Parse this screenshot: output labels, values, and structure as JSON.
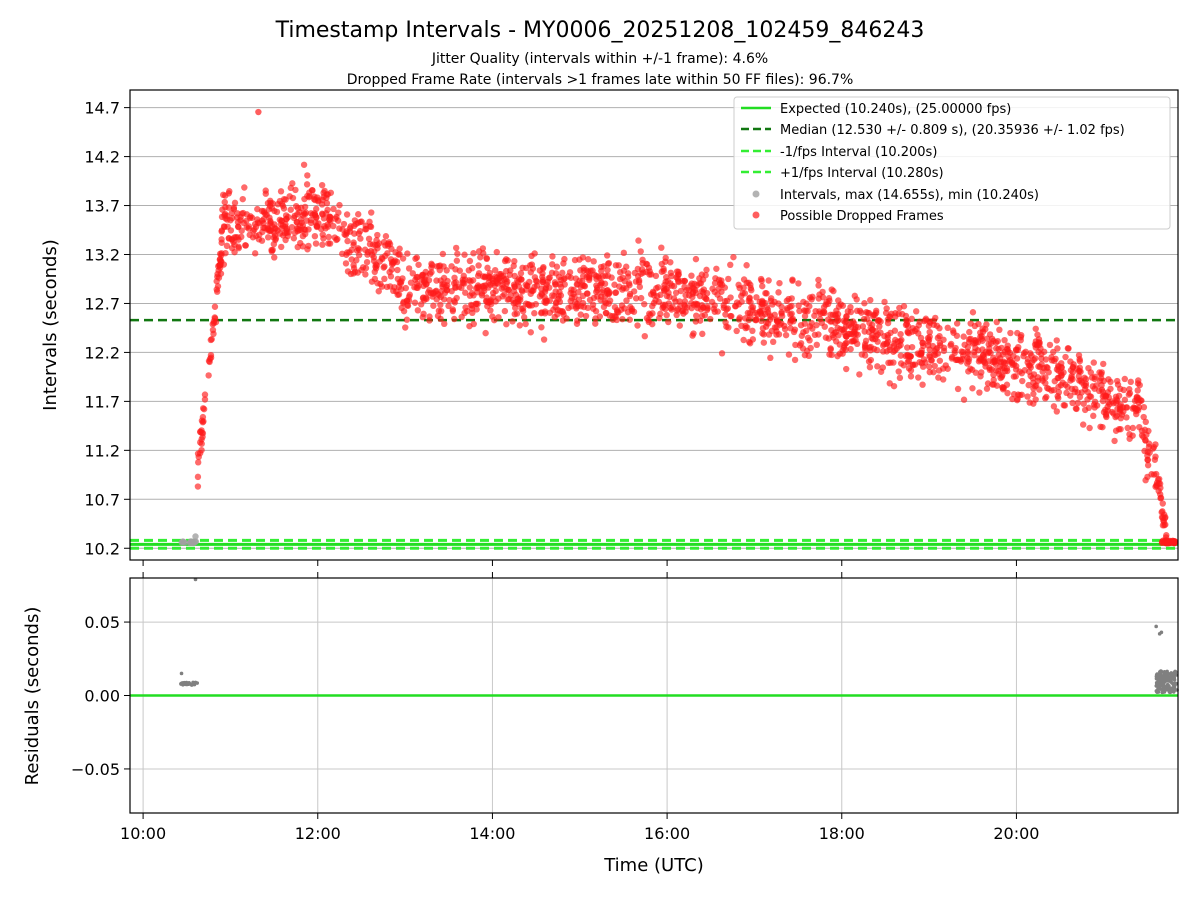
{
  "chart_data": [
    {
      "type": "scatter",
      "title": "Timestamp Intervals - MY0006_20251208_102459_846243",
      "subtitles": [
        "Jitter Quality (intervals within +/-1 frame): 4.6%",
        "Dropped Frame Rate (intervals >1 frames late within 50 FF files): 96.7%"
      ],
      "xlabel": "",
      "ylabel": "Intervals (seconds)",
      "xlim": [
        9.85,
        21.85
      ],
      "ylim": [
        10.08,
        14.88
      ],
      "y_ticks": [
        "10.2",
        "10.7",
        "11.2",
        "11.7",
        "12.2",
        "12.7",
        "13.2",
        "13.7",
        "14.2",
        "14.7"
      ],
      "x_ticks": [
        10,
        12,
        14,
        16,
        18,
        20
      ],
      "grid": true,
      "legend_position": "top-right",
      "legend": [
        "Expected (10.240s), (25.00000 fps)",
        "Median (12.530 +/- 0.809 s), (20.35936 +/- 1.02 fps)",
        "-1/fps Interval (10.200s)",
        "+1/fps Interval (10.280s)",
        "Intervals, max (14.655s), min (10.240s)",
        "Possible Dropped Frames"
      ],
      "reference_lines": {
        "expected": 10.24,
        "median": 12.53,
        "minus_one_frame": 10.2,
        "plus_one_frame": 10.28
      },
      "intervals": {
        "max": 14.655,
        "min": 10.24
      },
      "time_range": [
        "10:25",
        "21:50"
      ],
      "colors": {
        "expected": "#22dd22",
        "median": "#117711",
        "frame_bounds": "#33ee33",
        "intervals": "#a0a0a0",
        "dropped": "#ff1a1a"
      }
    },
    {
      "type": "scatter",
      "title": "",
      "xlabel": "Time (UTC)",
      "ylabel": "Residuals (seconds)",
      "xlim": [
        9.85,
        21.85
      ],
      "ylim": [
        -0.08,
        0.08
      ],
      "y_ticks": [
        "0.05",
        "0.00",
        "−0.05"
      ],
      "x_tick_labels": [
        "10:00",
        "12:00",
        "14:00",
        "16:00",
        "18:00",
        "20:00"
      ],
      "x_ticks": [
        10,
        12,
        14,
        16,
        18,
        20
      ],
      "grid": true,
      "zero_line": 0,
      "colors": {
        "points": "#808080",
        "zero_line": "#22dd22"
      }
    }
  ]
}
